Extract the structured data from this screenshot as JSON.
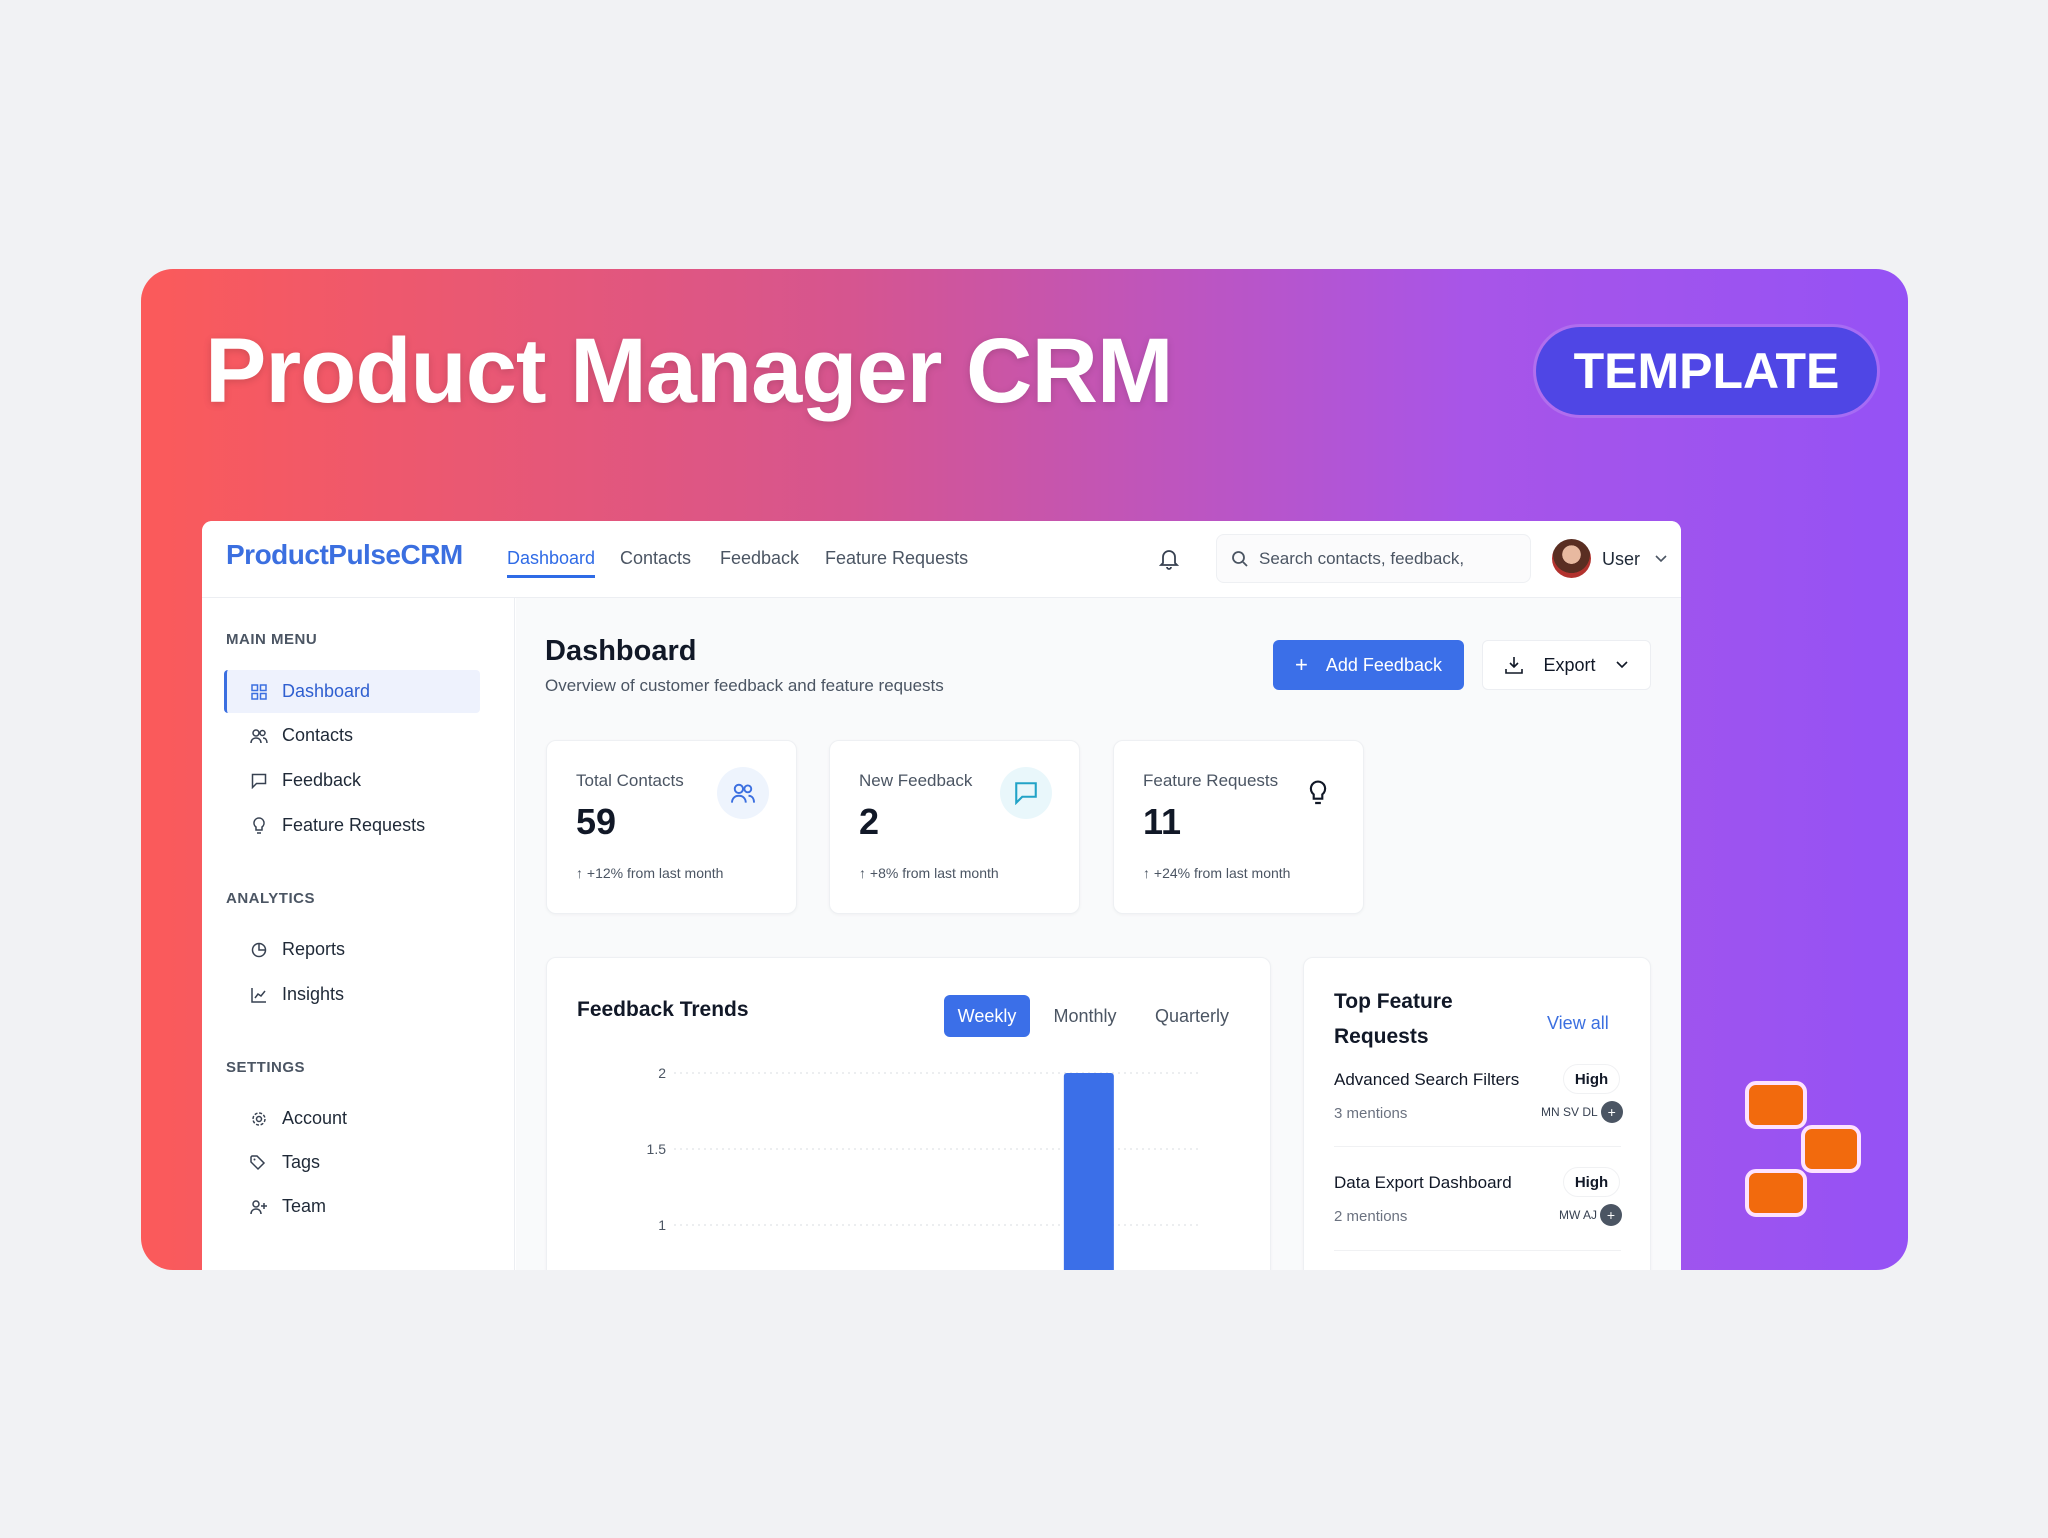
{
  "banner": {
    "title": "Product Manager CRM",
    "badge": "TEMPLATE",
    "brand_color": "#f26a0d"
  },
  "header": {
    "logo": "ProductPulseCRM",
    "nav": [
      {
        "label": "Dashboard",
        "active": true
      },
      {
        "label": "Contacts"
      },
      {
        "label": "Feedback"
      },
      {
        "label": "Feature Requests"
      }
    ],
    "search_placeholder": "Search contacts, feedback,",
    "user": "User"
  },
  "sidebar": {
    "main_menu": "MAIN MENU",
    "analytics": "ANALYTICS",
    "settings": "SETTINGS",
    "items": [
      {
        "label": "Dashboard",
        "icon": "grid-icon"
      },
      {
        "label": "Contacts",
        "icon": "users-icon"
      },
      {
        "label": "Feedback",
        "icon": "message-icon"
      },
      {
        "label": "Feature Requests",
        "icon": "lightbulb-icon"
      },
      {
        "label": "Reports",
        "icon": "pie-chart-icon"
      },
      {
        "label": "Insights",
        "icon": "line-chart-icon"
      },
      {
        "label": "Account",
        "icon": "gear-icon"
      },
      {
        "label": "Tags",
        "icon": "tag-icon"
      },
      {
        "label": "Team",
        "icon": "user-plus-icon"
      }
    ]
  },
  "page": {
    "title": "Dashboard",
    "subtitle": "Overview of customer feedback and feature requests",
    "add_feedback": "Add Feedback",
    "export": "Export",
    "accent": "#3b6fe8"
  },
  "stats": [
    {
      "label": "Total Contacts",
      "value": "59",
      "change": "+12% from last month"
    },
    {
      "label": "New Feedback",
      "value": "2",
      "change": "+8% from last month"
    },
    {
      "label": "Feature Requests",
      "value": "11",
      "change": "+24% from last month"
    }
  ],
  "trends": {
    "title": "Feedback Trends",
    "tabs": [
      "Weekly",
      "Monthly",
      "Quarterly"
    ],
    "active_tab": "Weekly"
  },
  "chart_data": {
    "type": "bar",
    "values": [
      0,
      0,
      0,
      0,
      0,
      2,
      0
    ],
    "yticks": [
      "2",
      "1.5",
      "1"
    ],
    "ylim": [
      0,
      2
    ],
    "grid": true,
    "color": "#3b6fe8"
  },
  "top_features": {
    "title_line1": "Top Feature",
    "title_line2": "Requests",
    "view_all": "View all",
    "items": [
      {
        "name": "Advanced Search Filters",
        "priority": "High",
        "mentions": "3 mentions",
        "avatars": "MN SV DL"
      },
      {
        "name": "Data Export Dashboard",
        "priority": "High",
        "mentions": "2 mentions",
        "avatars": "MW AJ"
      }
    ]
  }
}
